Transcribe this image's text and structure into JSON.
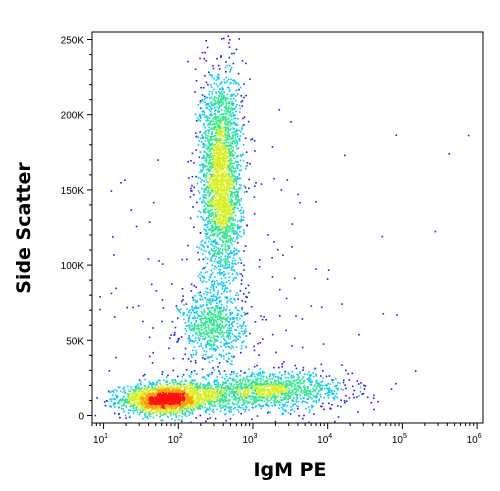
{
  "chart_data": {
    "type": "scatter",
    "subtype": "flow-cytometry-density-dot-plot",
    "title": "",
    "xlabel": "IgM PE",
    "ylabel": "Side Scatter",
    "x_scale": "log",
    "xlim": [
      7,
      1200000
    ],
    "ylim": [
      -5000,
      255000
    ],
    "x_ticks": [
      {
        "base": "10",
        "exp": "1",
        "value": 10
      },
      {
        "base": "10",
        "exp": "2",
        "value": 100
      },
      {
        "base": "10",
        "exp": "3",
        "value": 1000
      },
      {
        "base": "10",
        "exp": "4",
        "value": 10000
      },
      {
        "base": "10",
        "exp": "5",
        "value": 100000
      },
      {
        "base": "10",
        "exp": "6",
        "value": 1000000
      }
    ],
    "y_ticks": [
      {
        "label": "0",
        "value": 0
      },
      {
        "label": "50K",
        "value": 50000
      },
      {
        "label": "100K",
        "value": 100000
      },
      {
        "label": "150K",
        "value": 150000
      },
      {
        "label": "200K",
        "value": 200000
      },
      {
        "label": "250K",
        "value": 250000
      }
    ],
    "grid": false,
    "legend": "none",
    "color_scale": [
      "#1a1aff",
      "#00c8ff",
      "#30e890",
      "#d8f020",
      "#ffa000",
      "#ff1010"
    ],
    "populations": [
      {
        "center_x": 60,
        "center_y": 11000,
        "spread_log_x": 0.28,
        "spread_y": 5000,
        "count": 1500
      },
      {
        "center_x": 150,
        "center_y": 13000,
        "spread_log_x": 0.35,
        "spread_y": 6000,
        "count": 600
      },
      {
        "center_x": 1500,
        "center_y": 17000,
        "spread_log_x": 0.55,
        "spread_y": 6000,
        "count": 1300
      },
      {
        "center_x": 280,
        "center_y": 60000,
        "spread_log_x": 0.22,
        "spread_y": 12000,
        "count": 700
      },
      {
        "center_x": 370,
        "center_y": 158000,
        "spread_log_x": 0.14,
        "spread_y": 36000,
        "count": 2600
      },
      {
        "center_x": 300,
        "center_y": 70000,
        "spread_log_x": 1.2,
        "spread_y": 60000,
        "count": 220
      }
    ]
  }
}
